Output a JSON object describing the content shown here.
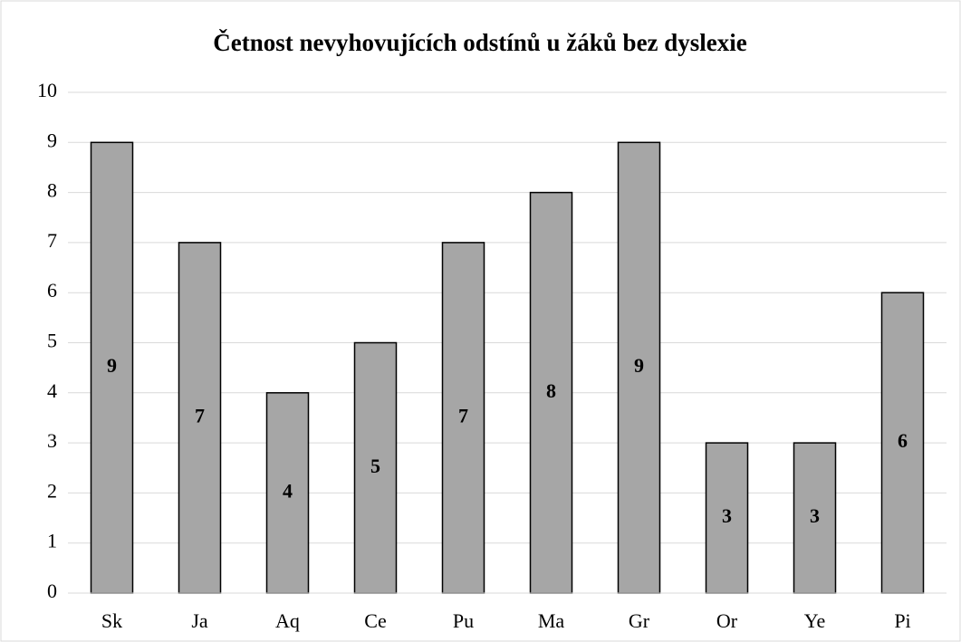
{
  "chart_data": {
    "type": "bar",
    "title": "Četnost nevyhovujících odstínů u žáků bez dyslexie",
    "categories": [
      "Sk",
      "Ja",
      "Aq",
      "Ce",
      "Pu",
      "Ma",
      "Gr",
      "Or",
      "Ye",
      "Pi"
    ],
    "values": [
      9,
      7,
      4,
      5,
      7,
      8,
      9,
      3,
      3,
      6
    ],
    "color": "#a6a6a6",
    "ylim": [
      0,
      10
    ],
    "yticks": [
      0,
      1,
      2,
      3,
      4,
      5,
      6,
      7,
      8,
      9,
      10
    ],
    "grid": true,
    "data_labels": true
  }
}
